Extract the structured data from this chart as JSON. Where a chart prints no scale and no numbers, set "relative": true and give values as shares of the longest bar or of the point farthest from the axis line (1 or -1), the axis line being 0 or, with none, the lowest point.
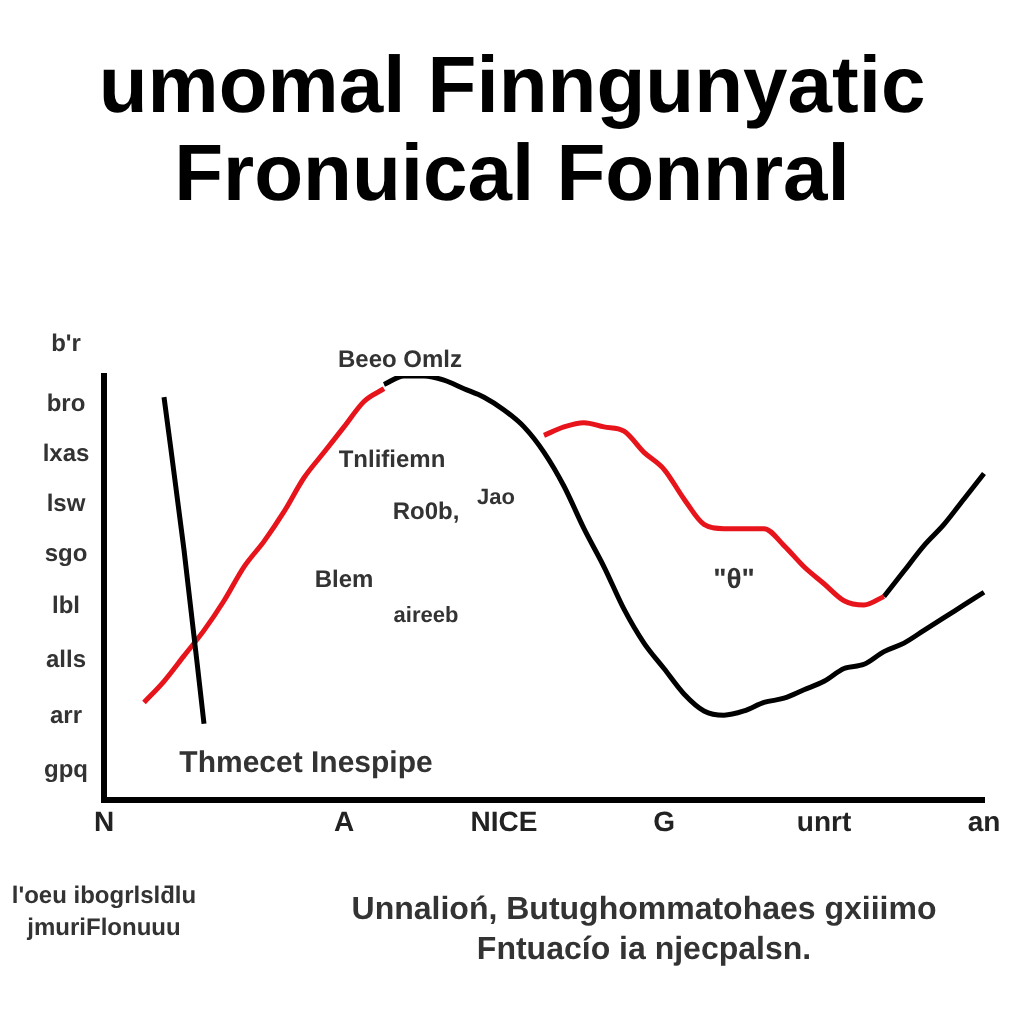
{
  "chart_data": {
    "type": "line",
    "title": "umomal Finngunyatic\nFronuical Fonnral",
    "relative": true,
    "legend": false,
    "categories": [
      "N",
      null,
      null,
      null,
      null,
      null,
      null,
      null,
      null,
      null,
      null,
      null,
      "A",
      null,
      null,
      null,
      null,
      null,
      null,
      null,
      "NICE",
      null,
      null,
      null,
      null,
      null,
      null,
      null,
      "G",
      null,
      null,
      null,
      null,
      null,
      null,
      null,
      "unrt",
      null,
      null,
      null,
      null,
      null,
      null,
      null,
      "an"
    ],
    "series": [
      {
        "color": "#000000",
        "values": [
          null,
          null,
          null,
          0.95,
          0.59,
          0.18,
          null,
          null,
          null,
          null,
          null,
          null,
          null,
          null,
          0.98,
          1,
          1,
          0.99,
          0.97,
          0.95,
          0.92,
          0.88,
          0.82,
          0.74,
          0.64,
          0.55,
          0.45,
          0.37,
          0.31,
          0.25,
          0.21,
          0.2,
          0.21,
          0.23,
          0.24,
          0.26,
          0.28,
          0.31,
          0.32,
          0.35,
          0.37,
          0.4,
          0.43,
          0.46,
          0.49
        ]
      },
      {
        "color": "#e8141b",
        "values": [
          null,
          null,
          0.23,
          0.28,
          0.34,
          0.4,
          0.47,
          0.55,
          0.61,
          0.68,
          0.76,
          0.82,
          0.88,
          0.94,
          0.97,
          null,
          null,
          null,
          null,
          null,
          null,
          null,
          0.86,
          0.88,
          0.89,
          0.88,
          0.87,
          0.82,
          0.78,
          0.71,
          0.65,
          0.64,
          0.64,
          0.64,
          0.6,
          0.55,
          0.51,
          0.47,
          0.46,
          0.48,
          null,
          null,
          null,
          null,
          null
        ]
      },
      {
        "color": "#000000",
        "values": [
          null,
          null,
          null,
          null,
          null,
          null,
          null,
          null,
          null,
          null,
          null,
          null,
          null,
          null,
          null,
          null,
          null,
          null,
          null,
          null,
          null,
          null,
          null,
          null,
          null,
          null,
          null,
          null,
          null,
          null,
          null,
          null,
          null,
          null,
          null,
          null,
          null,
          null,
          null,
          0.48,
          0.54,
          0.6,
          0.65,
          0.71,
          0.77
        ]
      }
    ],
    "annotations": [
      "b'r",
      "bro",
      "lxas",
      "lsw",
      "sgo",
      "lbl",
      "alls",
      "arr",
      "gpq",
      "Beeo Omlz",
      "Tnlifiemn",
      "Ro0b,",
      "Jao",
      "Blem",
      "aireeb",
      "\"θ\"",
      "Thmecet Inespipe",
      "l'oeu ibogrlslƌlu\njmuriFlonuuu",
      "Unnalioń, Butughommatohaes gxiiimo\nFntuacío ia njecpalsn."
    ]
  }
}
